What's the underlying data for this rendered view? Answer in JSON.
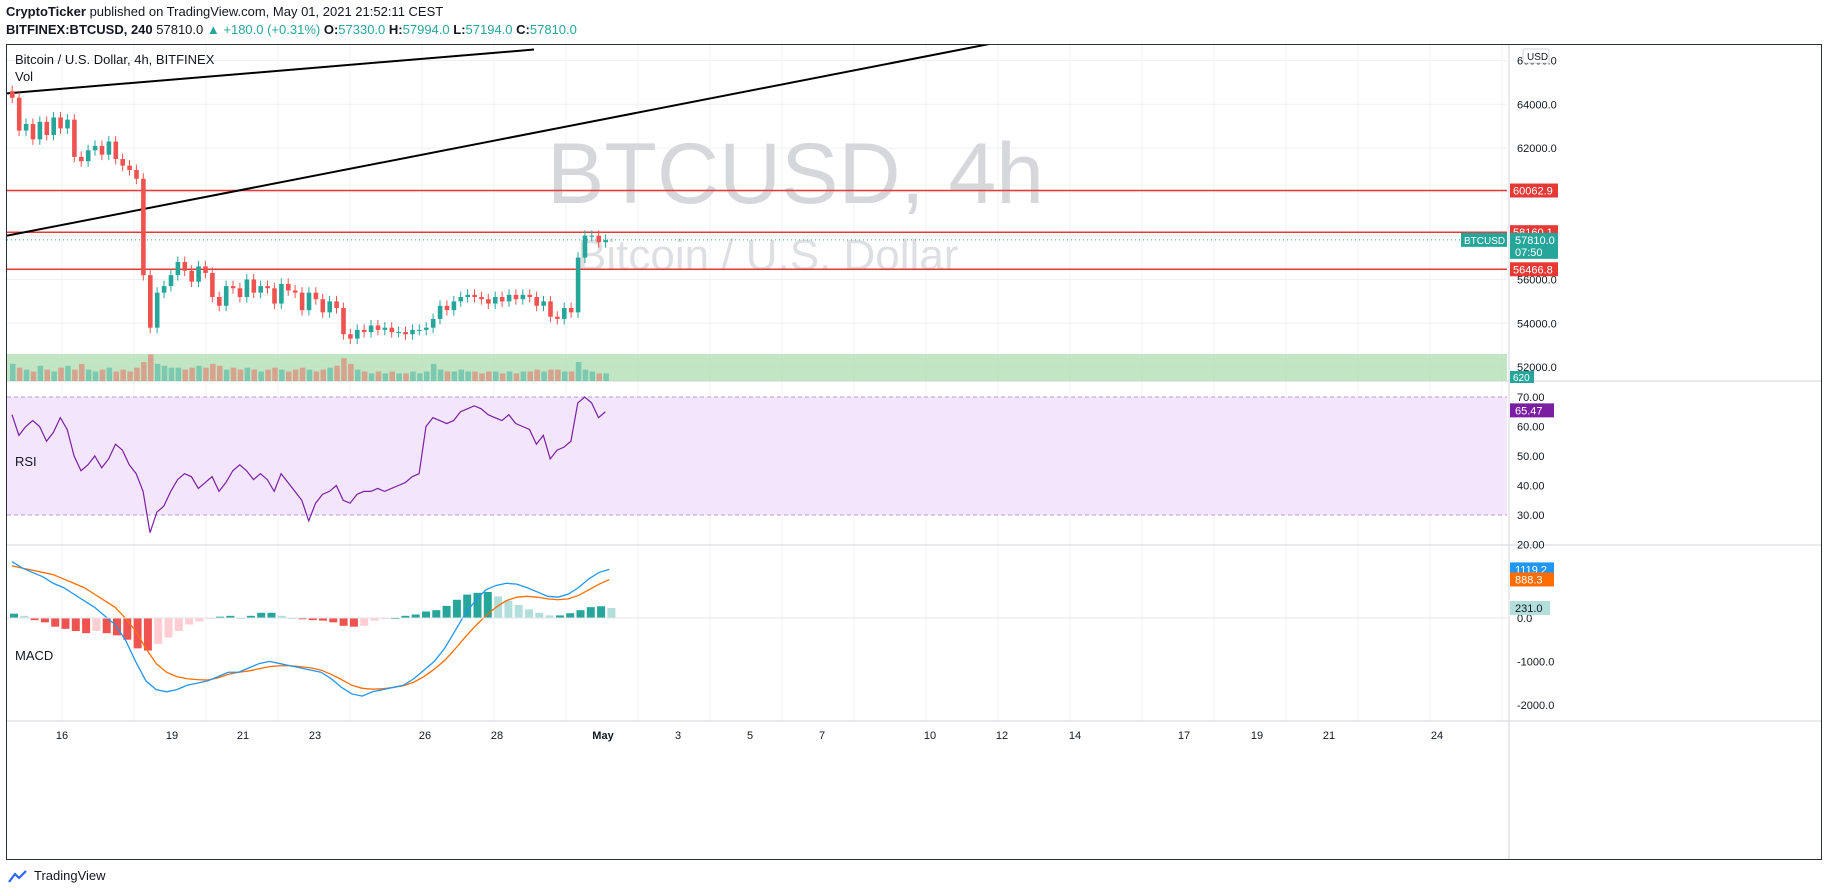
{
  "header": {
    "publisher": "CryptoTicker",
    "published_text": " published on TradingView.com, May 01, 2021 21:52:11 CEST",
    "symbol": "BITFINEX:BTCUSD, 240",
    "last": "57810.0",
    "change": "▲ +180.0 (+0.31%)",
    "o_label": "O:",
    "o_val": "57330.0",
    "h_label": "H:",
    "h_val": "57994.0",
    "l_label": "L:",
    "l_val": "57194.0",
    "c_label": "C:",
    "c_val": "57810.0"
  },
  "legend": {
    "title": "Bitcoin / U.S. Dollar, 4h, BITFINEX",
    "vol": "Vol",
    "rsi": "RSI",
    "macd": "MACD"
  },
  "watermark": {
    "big": "BTCUSD, 4h",
    "sub": "Bitcoin / U.S. Dollar"
  },
  "currency_badge": "USD",
  "footer": {
    "brand": "TradingView"
  },
  "colors": {
    "up": "#26a69a",
    "down": "#ef5350",
    "level": "#e53935",
    "rsi_line": "#7b1fa2",
    "rsi_band": "#f3e5fc",
    "macd_line": "#2196f3",
    "signal_line": "#ff6d00",
    "zone": "#b7e1b9",
    "trend": "#000000"
  },
  "chart_data": {
    "type": "candlestick",
    "title": "Bitcoin / U.S. Dollar, 4h, BITFINEX",
    "price_axis": {
      "range": [
        51000,
        67000
      ],
      "ticks": [
        52000,
        54000,
        56000,
        58000,
        60000,
        62000,
        64000,
        66000
      ]
    },
    "x_ticks": [
      "16",
      "19",
      "21",
      "23",
      "26",
      "28",
      "May",
      "3",
      "5",
      "7",
      "10",
      "12",
      "14",
      "17",
      "19",
      "21",
      "24"
    ],
    "levels": [
      {
        "value": 60062.9,
        "label": "60062.9"
      },
      {
        "value": 58160.1,
        "label": "58160.1"
      },
      {
        "value": 56466.8,
        "label": "56466.8"
      }
    ],
    "last_price": {
      "symbol": "BTCUSD",
      "value": "57810.0",
      "countdown": "07:50"
    },
    "volume_badge": "620",
    "close_series": [
      64300,
      62800,
      63100,
      62400,
      63200,
      62600,
      63400,
      62900,
      63300,
      61600,
      61400,
      61900,
      62100,
      61700,
      62300,
      61500,
      61200,
      61000,
      60600,
      56200,
      53800,
      55400,
      55700,
      56200,
      56800,
      56400,
      55900,
      56600,
      56300,
      55200,
      54800,
      55700,
      55600,
      55200,
      56000,
      55400,
      55700,
      55600,
      54900,
      55800,
      55500,
      55400,
      54600,
      55400,
      55100,
      54500,
      55000,
      54700,
      53500,
      53300,
      53700,
      53600,
      53900,
      53700,
      53800,
      53600,
      53600,
      53500,
      53700,
      53700,
      53800,
      54200,
      54800,
      54600,
      55000,
      55200,
      55300,
      55200,
      55100,
      54900,
      55200,
      55000,
      55300,
      55100,
      55300,
      55200,
      54800,
      55000,
      54300,
      54200,
      54700,
      54500,
      57000,
      58000,
      58000,
      57700,
      57800
    ],
    "volume_series": [
      9,
      7,
      6,
      5,
      8,
      6,
      5,
      7,
      8,
      6,
      9,
      6,
      5,
      6,
      7,
      5,
      6,
      5,
      7,
      10,
      14,
      9,
      8,
      7,
      7,
      6,
      7,
      8,
      7,
      9,
      8,
      6,
      7,
      6,
      7,
      6,
      5,
      6,
      7,
      6,
      5,
      6,
      7,
      6,
      5,
      6,
      7,
      8,
      12,
      9,
      6,
      5,
      4,
      5,
      4,
      5,
      4,
      4,
      5,
      4,
      5,
      9,
      6,
      5,
      5,
      6,
      5,
      5,
      4,
      5,
      5,
      4,
      5,
      4,
      5,
      5,
      6,
      5,
      6,
      6,
      5,
      5,
      10,
      6,
      5,
      4,
      4
    ],
    "rsi": {
      "range": [
        20,
        70
      ],
      "ticks": [
        20,
        30,
        40,
        50,
        60,
        70
      ],
      "bands": [
        30,
        70
      ],
      "last": "65.47",
      "values": [
        64,
        57,
        60,
        62,
        60,
        55,
        58,
        63,
        59,
        50,
        45,
        47,
        50,
        46,
        49,
        54,
        52,
        47,
        44,
        38,
        24,
        31,
        33,
        38,
        42,
        44,
        43,
        39,
        41,
        43,
        38,
        41,
        45,
        47,
        45,
        42,
        44,
        42,
        38,
        44,
        41,
        38,
        35,
        28,
        34,
        37,
        38,
        40,
        35,
        34,
        37,
        38,
        38,
        39,
        38,
        39,
        40,
        41,
        43,
        44,
        60,
        63,
        62,
        61,
        62,
        65,
        66,
        67,
        66,
        64,
        63,
        62,
        64,
        61,
        60,
        59,
        54,
        57,
        49,
        52,
        53,
        55,
        68,
        70,
        68,
        63,
        65
      ]
    },
    "macd": {
      "ticks": [
        -2000,
        -1000,
        0.0
      ],
      "macd_last": "1119.2",
      "signal_last": "888.3",
      "hist_last": "231.0",
      "macd_values": [
        1300,
        1150,
        1050,
        950,
        800,
        700,
        550,
        400,
        250,
        50,
        -150,
        -500,
        -1000,
        -1450,
        -1650,
        -1700,
        -1650,
        -1550,
        -1500,
        -1450,
        -1350,
        -1250,
        -1250,
        -1150,
        -1050,
        -1000,
        -1050,
        -1100,
        -1150,
        -1200,
        -1250,
        -1400,
        -1600,
        -1750,
        -1800,
        -1700,
        -1650,
        -1600,
        -1550,
        -1400,
        -1200,
        -1000,
        -700,
        -300,
        100,
        400,
        650,
        750,
        800,
        780,
        700,
        600,
        500,
        480,
        550,
        700,
        900,
        1050,
        1119
      ],
      "signal_values": [
        1200,
        1150,
        1100,
        1050,
        1000,
        900,
        800,
        700,
        550,
        400,
        250,
        0,
        -300,
        -700,
        -1050,
        -1250,
        -1350,
        -1400,
        -1420,
        -1430,
        -1380,
        -1300,
        -1250,
        -1220,
        -1170,
        -1120,
        -1100,
        -1100,
        -1120,
        -1150,
        -1200,
        -1300,
        -1420,
        -1550,
        -1620,
        -1640,
        -1630,
        -1600,
        -1560,
        -1480,
        -1350,
        -1180,
        -980,
        -720,
        -440,
        -180,
        50,
        250,
        400,
        480,
        500,
        480,
        440,
        420,
        440,
        520,
        650,
        780,
        888
      ],
      "hist_values": [
        100,
        50,
        -50,
        -100,
        -200,
        -250,
        -300,
        -350,
        -300,
        -350,
        -400,
        -500,
        -700,
        -750,
        -600,
        -450,
        -300,
        -150,
        -80,
        -20,
        30,
        50,
        0,
        50,
        120,
        120,
        50,
        0,
        -30,
        -50,
        -60,
        -100,
        -180,
        -200,
        -180,
        -60,
        -20,
        0,
        50,
        80,
        150,
        180,
        280,
        420,
        540,
        580,
        600,
        500,
        400,
        300,
        200,
        120,
        60,
        60,
        110,
        180,
        250,
        270,
        231
      ]
    }
  }
}
